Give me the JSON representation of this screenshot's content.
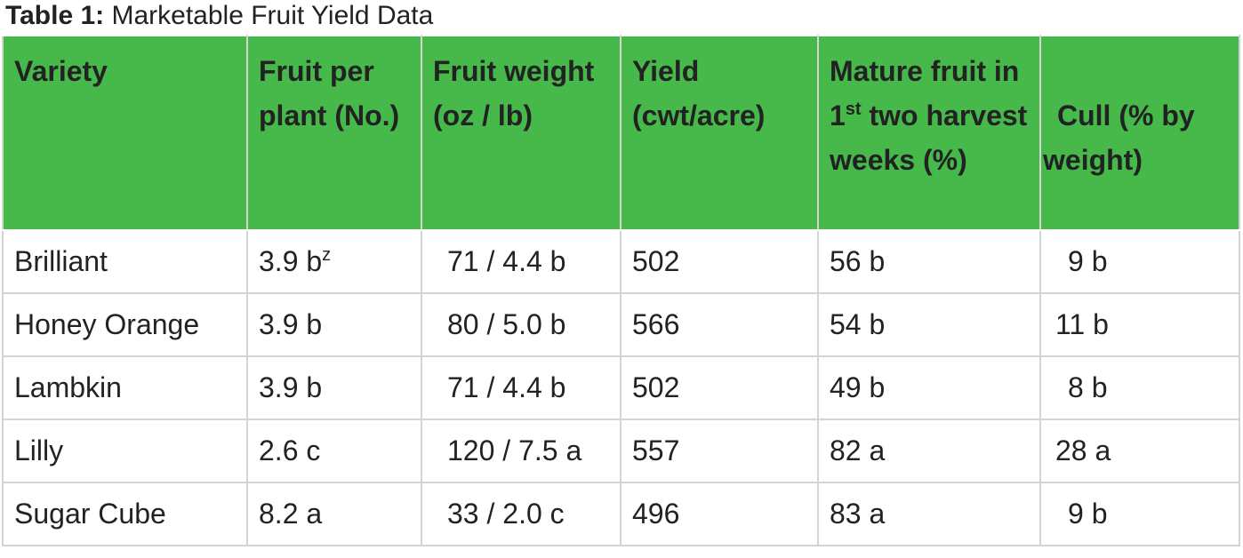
{
  "title": {
    "label": "Table 1:",
    "text": "Marketable Fruit Yield Data"
  },
  "table": {
    "header": [
      "Variety",
      "Fruit per plant (No.)",
      "Fruit weight (oz / lb)",
      "Yield (cwt/acre)",
      [
        "Mature fruit in 1",
        {
          "sup": "st"
        },
        " two harvest weeks (%)"
      ],
      "Cull (% by weight)"
    ],
    "rows": [
      [
        "Brilliant",
        [
          "3.9 b",
          {
            "sup": "z"
          }
        ],
        "71 / 4.4 b",
        "502",
        "56 b",
        "9 b"
      ],
      [
        "Honey Orange",
        "3.9 b",
        "80 / 5.0 b",
        "566",
        "54 b",
        "11 b"
      ],
      [
        "Lambkin",
        "3.9 b",
        "71 / 4.4 b",
        "502",
        "49 b",
        "8 b"
      ],
      [
        "Lilly",
        "2.6 c",
        "120 / 7.5 a",
        "557",
        "82 a",
        "28 a"
      ],
      [
        "Sugar Cube",
        "8.2 a",
        "33 / 2.0 c",
        "496",
        "83 a",
        "9 b"
      ]
    ]
  }
}
